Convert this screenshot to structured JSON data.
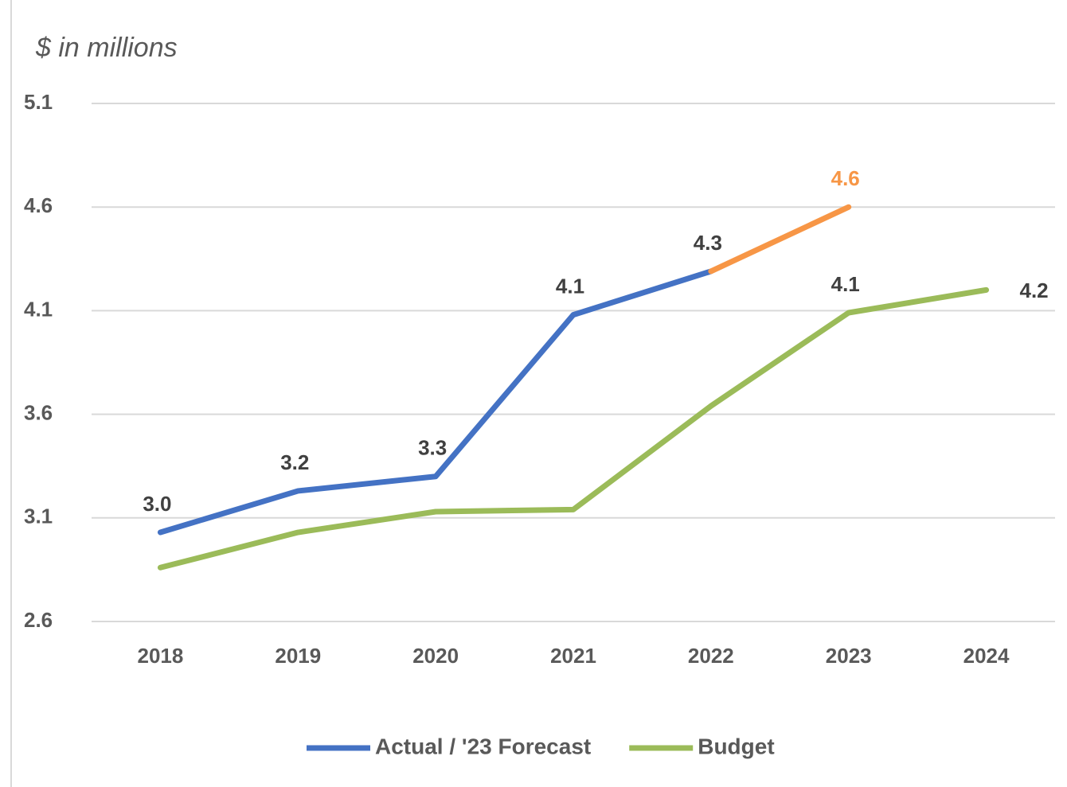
{
  "chart_data": {
    "type": "line",
    "title": "$ in millions",
    "categories": [
      "2018",
      "2019",
      "2020",
      "2021",
      "2022",
      "2023",
      "2024"
    ],
    "series": [
      {
        "name": "Actual / '23 Forecast",
        "color": "#4472c4",
        "forecast_color": "#f79646",
        "values": [
          3.03,
          3.23,
          3.3,
          4.08,
          4.29,
          4.6,
          null
        ],
        "value_labels": [
          "3.0",
          "3.2",
          "3.3",
          "4.1",
          "4.3",
          "4.6",
          null
        ]
      },
      {
        "name": "Budget",
        "color": "#9bbb59",
        "values": [
          2.86,
          3.03,
          3.13,
          3.14,
          3.64,
          4.09,
          4.2
        ],
        "value_labels": [
          null,
          null,
          null,
          null,
          null,
          "4.1",
          "4.2"
        ]
      }
    ],
    "ylim": [
      2.6,
      5.1
    ],
    "yticks": [
      2.6,
      3.1,
      3.6,
      4.1,
      4.6,
      5.1
    ],
    "grid": true,
    "legend": "bottom"
  }
}
